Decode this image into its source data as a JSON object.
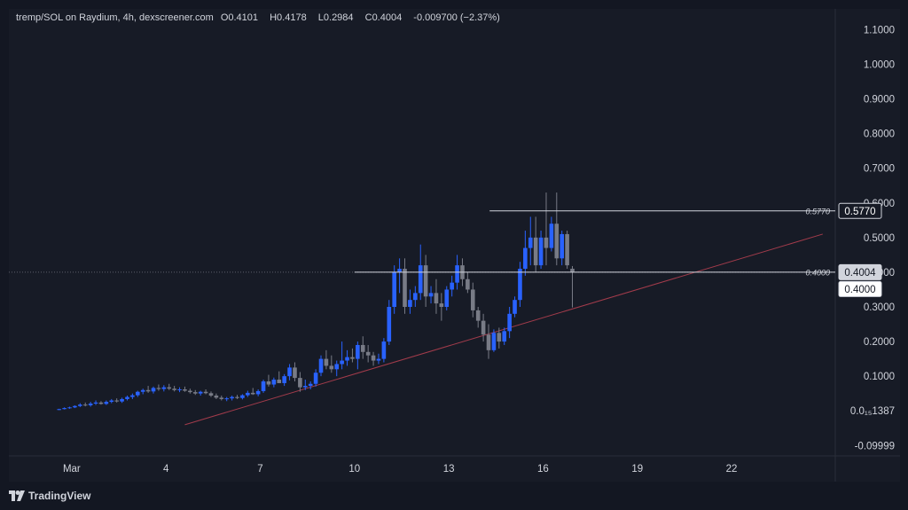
{
  "header": {
    "symbol": "tremp/SOL on Raydium, 4h, dexscreener.com",
    "open_label": "O",
    "open": "0.4101",
    "high_label": "H",
    "high": "0.4178",
    "low_label": "L",
    "low": "0.2984",
    "close_label": "C",
    "close": "0.4004",
    "change": "-0.009700 (−2.37%)"
  },
  "branding": {
    "logo_text": "TradingView"
  },
  "colors": {
    "up": "#2962ff",
    "down": "#787b86",
    "trend": "#a23b4b",
    "text": "#d1d4dc",
    "panel": "#171b26"
  },
  "chart_data": {
    "type": "candlestick",
    "interval": "4h",
    "x_ticks": [
      "Mar",
      "4",
      "7",
      "10",
      "13",
      "16",
      "19",
      "22"
    ],
    "x_tick_days": [
      1,
      4,
      7,
      10,
      13,
      16,
      19,
      22
    ],
    "y_tick_values": [
      1.1,
      1.0,
      0.9,
      0.8,
      0.7,
      0.6,
      0.5,
      0.4,
      0.3,
      0.2,
      0.1,
      0.0,
      -0.1
    ],
    "y_ticks": [
      "1.1000",
      "1.0000",
      "0.9000",
      "0.8000",
      "0.7000",
      "0.6000",
      "0.5000",
      "0.4000",
      "0.3000",
      "0.2000",
      "0.1000",
      "0.0₁₅1387",
      "-0.09999"
    ],
    "ylim": [
      -0.13,
      1.16
    ],
    "xlim": [
      -1.0,
      25.3
    ],
    "last_price_label": "0.4004",
    "crosshair_price_label": "0.4000",
    "crosshair_price": 0.4,
    "hline_label": "0.5770",
    "hline_price": 0.577,
    "trend_line": {
      "start": {
        "day": 4.6,
        "price": -0.04
      },
      "end": {
        "day": 24.9,
        "price": 0.51
      }
    },
    "candles": [
      {
        "o": 0.003,
        "h": 0.006,
        "l": 0.002,
        "c": 0.005
      },
      {
        "o": 0.005,
        "h": 0.01,
        "l": 0.004,
        "c": 0.008
      },
      {
        "o": 0.008,
        "h": 0.012,
        "l": 0.006,
        "c": 0.01
      },
      {
        "o": 0.01,
        "h": 0.016,
        "l": 0.008,
        "c": 0.014
      },
      {
        "o": 0.014,
        "h": 0.022,
        "l": 0.011,
        "c": 0.018
      },
      {
        "o": 0.018,
        "h": 0.024,
        "l": 0.013,
        "c": 0.016
      },
      {
        "o": 0.016,
        "h": 0.026,
        "l": 0.012,
        "c": 0.021
      },
      {
        "o": 0.021,
        "h": 0.03,
        "l": 0.017,
        "c": 0.024
      },
      {
        "o": 0.024,
        "h": 0.028,
        "l": 0.018,
        "c": 0.02
      },
      {
        "o": 0.02,
        "h": 0.03,
        "l": 0.017,
        "c": 0.026
      },
      {
        "o": 0.026,
        "h": 0.034,
        "l": 0.022,
        "c": 0.03
      },
      {
        "o": 0.03,
        "h": 0.036,
        "l": 0.024,
        "c": 0.027
      },
      {
        "o": 0.027,
        "h": 0.038,
        "l": 0.023,
        "c": 0.034
      },
      {
        "o": 0.034,
        "h": 0.044,
        "l": 0.03,
        "c": 0.04
      },
      {
        "o": 0.04,
        "h": 0.05,
        "l": 0.034,
        "c": 0.045
      },
      {
        "o": 0.045,
        "h": 0.058,
        "l": 0.04,
        "c": 0.055
      },
      {
        "o": 0.055,
        "h": 0.064,
        "l": 0.048,
        "c": 0.06
      },
      {
        "o": 0.06,
        "h": 0.072,
        "l": 0.052,
        "c": 0.056
      },
      {
        "o": 0.056,
        "h": 0.07,
        "l": 0.05,
        "c": 0.066
      },
      {
        "o": 0.066,
        "h": 0.076,
        "l": 0.058,
        "c": 0.063
      },
      {
        "o": 0.063,
        "h": 0.074,
        "l": 0.056,
        "c": 0.068
      },
      {
        "o": 0.068,
        "h": 0.078,
        "l": 0.06,
        "c": 0.064
      },
      {
        "o": 0.064,
        "h": 0.072,
        "l": 0.056,
        "c": 0.06
      },
      {
        "o": 0.06,
        "h": 0.068,
        "l": 0.054,
        "c": 0.062
      },
      {
        "o": 0.062,
        "h": 0.07,
        "l": 0.055,
        "c": 0.058
      },
      {
        "o": 0.058,
        "h": 0.064,
        "l": 0.05,
        "c": 0.054
      },
      {
        "o": 0.054,
        "h": 0.06,
        "l": 0.046,
        "c": 0.05
      },
      {
        "o": 0.05,
        "h": 0.058,
        "l": 0.044,
        "c": 0.055
      },
      {
        "o": 0.055,
        "h": 0.062,
        "l": 0.048,
        "c": 0.051
      },
      {
        "o": 0.051,
        "h": 0.056,
        "l": 0.04,
        "c": 0.044
      },
      {
        "o": 0.044,
        "h": 0.05,
        "l": 0.034,
        "c": 0.038
      },
      {
        "o": 0.038,
        "h": 0.044,
        "l": 0.03,
        "c": 0.034
      },
      {
        "o": 0.034,
        "h": 0.04,
        "l": 0.028,
        "c": 0.036
      },
      {
        "o": 0.036,
        "h": 0.044,
        "l": 0.03,
        "c": 0.04
      },
      {
        "o": 0.04,
        "h": 0.046,
        "l": 0.034,
        "c": 0.037
      },
      {
        "o": 0.037,
        "h": 0.048,
        "l": 0.033,
        "c": 0.045
      },
      {
        "o": 0.045,
        "h": 0.058,
        "l": 0.04,
        "c": 0.052
      },
      {
        "o": 0.052,
        "h": 0.066,
        "l": 0.046,
        "c": 0.048
      },
      {
        "o": 0.048,
        "h": 0.062,
        "l": 0.042,
        "c": 0.057
      },
      {
        "o": 0.057,
        "h": 0.09,
        "l": 0.052,
        "c": 0.085
      },
      {
        "o": 0.085,
        "h": 0.104,
        "l": 0.07,
        "c": 0.076
      },
      {
        "o": 0.076,
        "h": 0.096,
        "l": 0.068,
        "c": 0.09
      },
      {
        "o": 0.09,
        "h": 0.114,
        "l": 0.08,
        "c": 0.08
      },
      {
        "o": 0.08,
        "h": 0.106,
        "l": 0.072,
        "c": 0.1
      },
      {
        "o": 0.1,
        "h": 0.135,
        "l": 0.088,
        "c": 0.125
      },
      {
        "o": 0.125,
        "h": 0.14,
        "l": 0.085,
        "c": 0.095
      },
      {
        "o": 0.095,
        "h": 0.112,
        "l": 0.055,
        "c": 0.068
      },
      {
        "o": 0.068,
        "h": 0.09,
        "l": 0.06,
        "c": 0.072
      },
      {
        "o": 0.072,
        "h": 0.085,
        "l": 0.062,
        "c": 0.078
      },
      {
        "o": 0.078,
        "h": 0.12,
        "l": 0.07,
        "c": 0.11
      },
      {
        "o": 0.11,
        "h": 0.16,
        "l": 0.1,
        "c": 0.15
      },
      {
        "o": 0.15,
        "h": 0.175,
        "l": 0.12,
        "c": 0.13
      },
      {
        "o": 0.13,
        "h": 0.16,
        "l": 0.11,
        "c": 0.12
      },
      {
        "o": 0.12,
        "h": 0.145,
        "l": 0.1,
        "c": 0.135
      },
      {
        "o": 0.135,
        "h": 0.2,
        "l": 0.12,
        "c": 0.145
      },
      {
        "o": 0.145,
        "h": 0.175,
        "l": 0.13,
        "c": 0.155
      },
      {
        "o": 0.155,
        "h": 0.18,
        "l": 0.14,
        "c": 0.15
      },
      {
        "o": 0.15,
        "h": 0.2,
        "l": 0.12,
        "c": 0.19
      },
      {
        "o": 0.19,
        "h": 0.215,
        "l": 0.15,
        "c": 0.17
      },
      {
        "o": 0.17,
        "h": 0.19,
        "l": 0.14,
        "c": 0.16
      },
      {
        "o": 0.16,
        "h": 0.17,
        "l": 0.13,
        "c": 0.145
      },
      {
        "o": 0.145,
        "h": 0.165,
        "l": 0.135,
        "c": 0.15
      },
      {
        "o": 0.15,
        "h": 0.21,
        "l": 0.14,
        "c": 0.2
      },
      {
        "o": 0.2,
        "h": 0.32,
        "l": 0.19,
        "c": 0.3
      },
      {
        "o": 0.3,
        "h": 0.42,
        "l": 0.28,
        "c": 0.4
      },
      {
        "o": 0.4,
        "h": 0.44,
        "l": 0.34,
        "c": 0.41
      },
      {
        "o": 0.41,
        "h": 0.44,
        "l": 0.28,
        "c": 0.3
      },
      {
        "o": 0.3,
        "h": 0.35,
        "l": 0.28,
        "c": 0.32
      },
      {
        "o": 0.32,
        "h": 0.36,
        "l": 0.3,
        "c": 0.34
      },
      {
        "o": 0.34,
        "h": 0.48,
        "l": 0.32,
        "c": 0.42
      },
      {
        "o": 0.42,
        "h": 0.45,
        "l": 0.3,
        "c": 0.33
      },
      {
        "o": 0.33,
        "h": 0.36,
        "l": 0.31,
        "c": 0.34
      },
      {
        "o": 0.34,
        "h": 0.38,
        "l": 0.28,
        "c": 0.31
      },
      {
        "o": 0.31,
        "h": 0.34,
        "l": 0.26,
        "c": 0.3
      },
      {
        "o": 0.3,
        "h": 0.36,
        "l": 0.29,
        "c": 0.35
      },
      {
        "o": 0.35,
        "h": 0.39,
        "l": 0.33,
        "c": 0.37
      },
      {
        "o": 0.37,
        "h": 0.45,
        "l": 0.35,
        "c": 0.42
      },
      {
        "o": 0.42,
        "h": 0.44,
        "l": 0.36,
        "c": 0.38
      },
      {
        "o": 0.38,
        "h": 0.4,
        "l": 0.34,
        "c": 0.35
      },
      {
        "o": 0.35,
        "h": 0.37,
        "l": 0.27,
        "c": 0.29
      },
      {
        "o": 0.29,
        "h": 0.3,
        "l": 0.24,
        "c": 0.26
      },
      {
        "o": 0.26,
        "h": 0.28,
        "l": 0.2,
        "c": 0.22
      },
      {
        "o": 0.22,
        "h": 0.25,
        "l": 0.15,
        "c": 0.175
      },
      {
        "o": 0.175,
        "h": 0.235,
        "l": 0.17,
        "c": 0.225
      },
      {
        "o": 0.225,
        "h": 0.24,
        "l": 0.18,
        "c": 0.2
      },
      {
        "o": 0.2,
        "h": 0.24,
        "l": 0.19,
        "c": 0.23
      },
      {
        "o": 0.23,
        "h": 0.3,
        "l": 0.21,
        "c": 0.28
      },
      {
        "o": 0.28,
        "h": 0.33,
        "l": 0.27,
        "c": 0.32
      },
      {
        "o": 0.32,
        "h": 0.43,
        "l": 0.3,
        "c": 0.41
      },
      {
        "o": 0.41,
        "h": 0.52,
        "l": 0.39,
        "c": 0.47
      },
      {
        "o": 0.47,
        "h": 0.56,
        "l": 0.42,
        "c": 0.5
      },
      {
        "o": 0.5,
        "h": 0.56,
        "l": 0.4,
        "c": 0.42
      },
      {
        "o": 0.42,
        "h": 0.52,
        "l": 0.41,
        "c": 0.5
      },
      {
        "o": 0.5,
        "h": 0.63,
        "l": 0.42,
        "c": 0.47
      },
      {
        "o": 0.47,
        "h": 0.56,
        "l": 0.46,
        "c": 0.54
      },
      {
        "o": 0.54,
        "h": 0.63,
        "l": 0.42,
        "c": 0.44
      },
      {
        "o": 0.44,
        "h": 0.52,
        "l": 0.42,
        "c": 0.51
      },
      {
        "o": 0.51,
        "h": 0.52,
        "l": 0.41,
        "c": 0.42
      },
      {
        "o": 0.4101,
        "h": 0.4178,
        "l": 0.2984,
        "c": 0.4004
      }
    ]
  }
}
